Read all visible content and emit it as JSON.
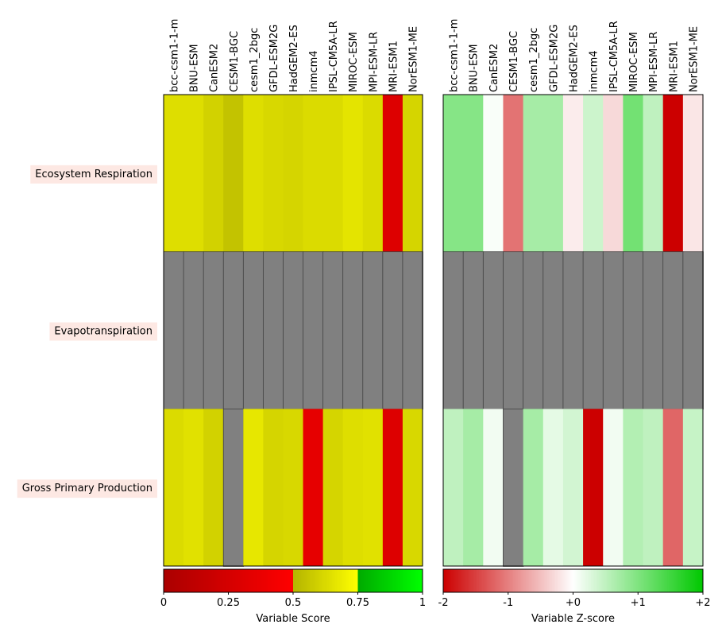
{
  "chart_data": [
    {
      "type": "heatmap",
      "models": [
        "bcc-csm1-1-m",
        "BNU-ESM",
        "CanESM2",
        "CESM1-BGC",
        "cesm1_2bgc",
        "GFDL-ESM2G",
        "HadGEM2-ES",
        "inmcm4",
        "IPSL-CM5A-LR",
        "MIROC-ESM",
        "MPI-ESM-LR",
        "MRI-ESM1",
        "NorESM1-ME"
      ],
      "variables": [
        "Ecosystem Respiration",
        "Evapotranspiration",
        "Gross Primary Production"
      ],
      "values": [
        [
          0.64,
          0.64,
          0.6,
          0.55,
          0.64,
          0.62,
          0.61,
          0.63,
          0.63,
          0.66,
          0.63,
          0.3,
          0.61
        ],
        [
          null,
          null,
          null,
          null,
          null,
          null,
          null,
          null,
          null,
          null,
          null,
          null,
          null
        ],
        [
          0.63,
          0.65,
          0.6,
          null,
          0.67,
          0.61,
          0.62,
          0.35,
          0.61,
          0.64,
          0.65,
          0.3,
          0.62
        ]
      ],
      "missing_color": "#808080",
      "colorbar": {
        "label": "Variable Score",
        "tick_labels": [
          "0",
          "0.25",
          "0.5",
          "0.75",
          "1"
        ],
        "range": [
          0,
          1
        ]
      }
    },
    {
      "type": "heatmap",
      "models": [
        "bcc-csm1-1-m",
        "BNU-ESM",
        "CanESM2",
        "CESM1-BGC",
        "cesm1_2bgc",
        "GFDL-ESM2G",
        "HadGEM2-ES",
        "inmcm4",
        "IPSL-CM5A-LR",
        "MIROC-ESM",
        "MPI-ESM-LR",
        "MRI-ESM1",
        "NorESM1-ME"
      ],
      "variables": [
        "Ecosystem Respiration",
        "Evapotranspiration",
        "Gross Primary Production"
      ],
      "values": [
        [
          0.95,
          0.95,
          0.05,
          -1.1,
          0.7,
          0.7,
          -0.15,
          0.4,
          -0.3,
          1.1,
          0.5,
          -2.0,
          -0.2
        ],
        [
          null,
          null,
          null,
          null,
          null,
          null,
          null,
          null,
          null,
          null,
          null,
          null,
          null
        ],
        [
          0.5,
          0.7,
          0.1,
          null,
          0.7,
          0.2,
          0.35,
          -2.0,
          0.1,
          0.6,
          0.5,
          -1.2,
          0.45
        ]
      ],
      "missing_color": "#808080",
      "colorbar": {
        "label": "Variable Z-score",
        "tick_labels": [
          "-2",
          "-1",
          "+0",
          "+1",
          "+2"
        ],
        "range": [
          -2,
          2
        ]
      }
    }
  ],
  "row_label_bg": "#fde8e3"
}
